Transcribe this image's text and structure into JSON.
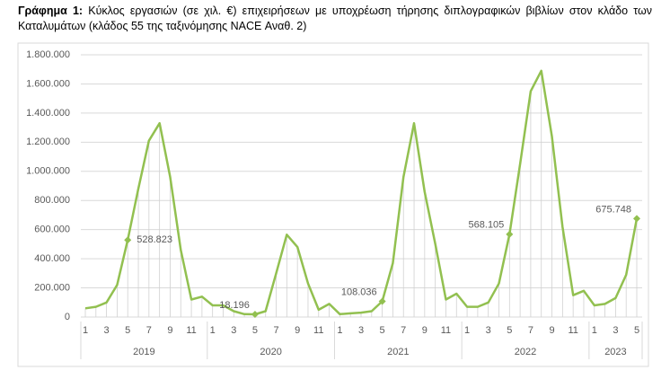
{
  "chart_data": {
    "type": "line",
    "label": "Γράφημα 1:",
    "title": "Κύκλος εργασιών (σε χιλ. €) επιχειρήσεων με υποχρέωση τήρησης διπλογραφικών βιβλίων στον κλάδο των Καταλυμάτων (κλάδος 55 της ταξινόμησης NACE Αναθ. 2)",
    "categories": [
      "1",
      null,
      "3",
      null,
      "5",
      null,
      "7",
      null,
      "9",
      null,
      "11",
      null,
      "1",
      null,
      "3",
      null,
      "5",
      null,
      "7",
      null,
      "9",
      null,
      "11",
      null,
      "1",
      null,
      "3",
      null,
      "5",
      null,
      "7",
      null,
      "9",
      null,
      "11",
      null,
      "1",
      null,
      "3",
      null,
      "5",
      null,
      "7",
      null,
      "9",
      null,
      "11",
      null,
      "1",
      null,
      "3",
      null,
      "5"
    ],
    "groups": [
      "2019",
      "2020",
      "2021",
      "2022",
      "2023"
    ],
    "series": [
      {
        "name": null,
        "color": "#92c050",
        "values": [
          60000,
          70000,
          100000,
          220000,
          528823,
          880000,
          1210000,
          1330000,
          960000,
          460000,
          120000,
          140000,
          80000,
          80000,
          40000,
          20000,
          18196,
          40000,
          300000,
          565000,
          480000,
          230000,
          50000,
          90000,
          20000,
          25000,
          30000,
          40000,
          108036,
          370000,
          960000,
          1330000,
          860000,
          500000,
          120000,
          160000,
          70000,
          70000,
          100000,
          230000,
          568105,
          1050000,
          1550000,
          1690000,
          1240000,
          620000,
          150000,
          180000,
          80000,
          90000,
          130000,
          290000,
          675748
        ],
        "value_labels": [
          null,
          null,
          null,
          null,
          "528.823",
          null,
          null,
          null,
          null,
          null,
          null,
          null,
          null,
          null,
          null,
          null,
          "18.196",
          null,
          null,
          null,
          null,
          null,
          null,
          null,
          null,
          null,
          null,
          null,
          "108.036",
          null,
          null,
          null,
          null,
          null,
          null,
          null,
          null,
          null,
          null,
          null,
          "568.105",
          null,
          null,
          null,
          null,
          null,
          null,
          null,
          null,
          null,
          null,
          null,
          "675.748"
        ]
      }
    ],
    "ylim": [
      0,
      1800000
    ],
    "yticks": [
      0,
      {
        "value": 200000,
        "label": "200.000"
      },
      {
        "value": 400000,
        "label": "400.000"
      },
      {
        "value": 600000,
        "label": "600.000"
      },
      {
        "value": 800000,
        "label": "800.000"
      },
      {
        "value": 1000000,
        "label": "1.000.000"
      },
      {
        "value": 1200000,
        "label": "1.200.000"
      },
      {
        "value": 1400000,
        "label": "1.400.000"
      },
      {
        "value": 1600000,
        "label": "1.600.000"
      },
      {
        "value": 1800000,
        "label": "1.800.000"
      }
    ],
    "grid": true
  }
}
